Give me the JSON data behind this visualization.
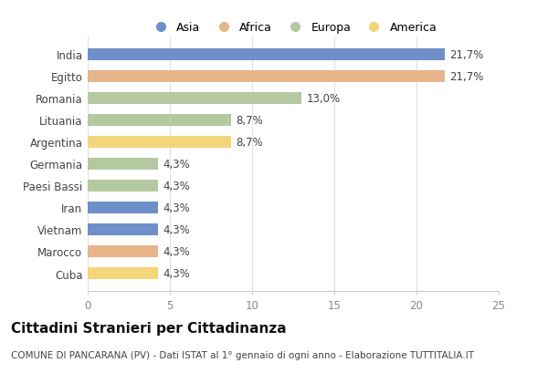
{
  "categories": [
    "India",
    "Egitto",
    "Romania",
    "Lituania",
    "Argentina",
    "Germania",
    "Paesi Bassi",
    "Iran",
    "Vietnam",
    "Marocco",
    "Cuba"
  ],
  "values": [
    21.7,
    21.7,
    13.0,
    8.7,
    8.7,
    4.3,
    4.3,
    4.3,
    4.3,
    4.3,
    4.3
  ],
  "labels": [
    "21,7%",
    "21,7%",
    "13,0%",
    "8,7%",
    "8,7%",
    "4,3%",
    "4,3%",
    "4,3%",
    "4,3%",
    "4,3%",
    "4,3%"
  ],
  "colors": [
    "#6e8fc9",
    "#e8b48a",
    "#b5c9a0",
    "#b5c9a0",
    "#f5d57a",
    "#b5c9a0",
    "#b5c9a0",
    "#6e8fc9",
    "#6e8fc9",
    "#e8b48a",
    "#f5d57a"
  ],
  "legend_labels": [
    "Asia",
    "Africa",
    "Europa",
    "America"
  ],
  "legend_colors": [
    "#6e8fc9",
    "#e8b48a",
    "#b5c9a0",
    "#f5d57a"
  ],
  "xlim": [
    0,
    25
  ],
  "xticks": [
    0,
    5,
    10,
    15,
    20,
    25
  ],
  "title": "Cittadini Stranieri per Cittadinanza",
  "subtitle": "COMUNE DI PANCARANA (PV) - Dati ISTAT al 1° gennaio di ogni anno - Elaborazione TUTTITALIA.IT",
  "bg_color": "#ffffff",
  "bar_height": 0.55,
  "label_fontsize": 8.5,
  "title_fontsize": 11,
  "subtitle_fontsize": 7.5,
  "ytick_fontsize": 8.5,
  "xtick_fontsize": 8.5,
  "legend_fontsize": 9
}
